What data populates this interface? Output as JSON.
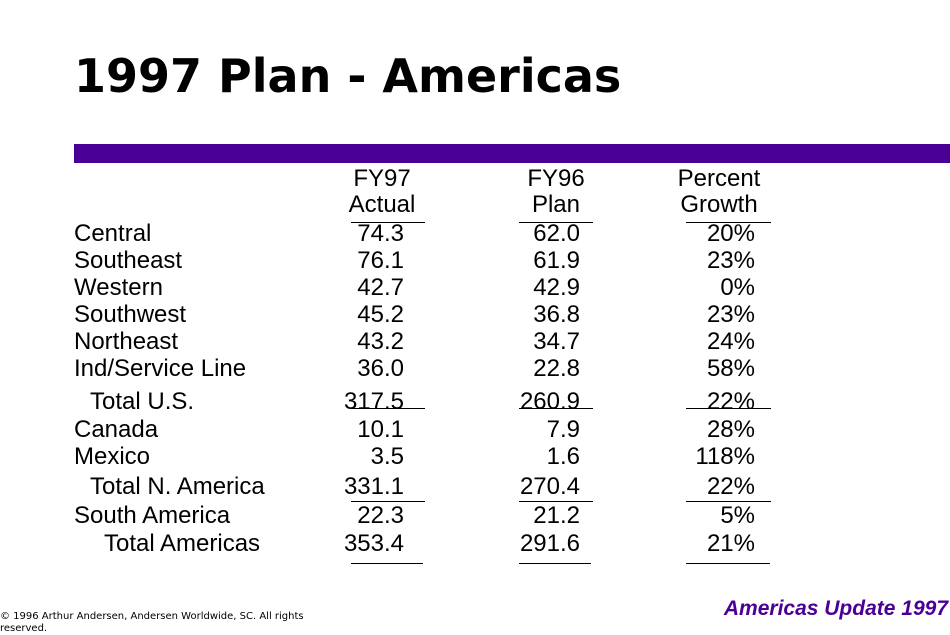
{
  "title": "1997 Plan - Americas",
  "accent_color": "#4b0095",
  "table": {
    "columns": [
      {
        "line1": "FY97",
        "line2": "Actual"
      },
      {
        "line1": "FY96",
        "line2": "Plan"
      },
      {
        "line1": "Percent",
        "line2": "Growth"
      }
    ],
    "rows": [
      {
        "label": "Central",
        "fy97": "74.3",
        "fy96": "62.0",
        "growth": "20%"
      },
      {
        "label": "Southeast",
        "fy97": "76.1",
        "fy96": "61.9",
        "growth": "23%"
      },
      {
        "label": "Western",
        "fy97": "42.7",
        "fy96": "42.9",
        "growth": "0%"
      },
      {
        "label": "Southwest",
        "fy97": "45.2",
        "fy96": "36.8",
        "growth": "23%"
      },
      {
        "label": "Northeast",
        "fy97": "43.2",
        "fy96": "34.7",
        "growth": "24%"
      },
      {
        "label": "Ind/Service Line",
        "fy97": "36.0",
        "fy96": "22.8",
        "growth": "58%"
      },
      {
        "label": "Total U.S.",
        "fy97": "317.5",
        "fy96": "260.9",
        "growth": "22%"
      },
      {
        "label": "Canada",
        "fy97": "10.1",
        "fy96": "7.9",
        "growth": "28%"
      },
      {
        "label": "Mexico",
        "fy97": "3.5",
        "fy96": "1.6",
        "growth": "118%"
      },
      {
        "label": "Total N. America",
        "fy97": "331.1",
        "fy96": "270.4",
        "growth": "22%"
      },
      {
        "label": "South America",
        "fy97": "22.3",
        "fy96": "21.2",
        "growth": "5%"
      },
      {
        "label": "Total Americas",
        "fy97": "353.4",
        "fy96": "291.6",
        "growth": "21%"
      }
    ]
  },
  "footer": {
    "brand": "Americas Update 1997",
    "copyright": "© 1996 Arthur Andersen, Andersen Worldwide, SC.  All rights reserved."
  }
}
